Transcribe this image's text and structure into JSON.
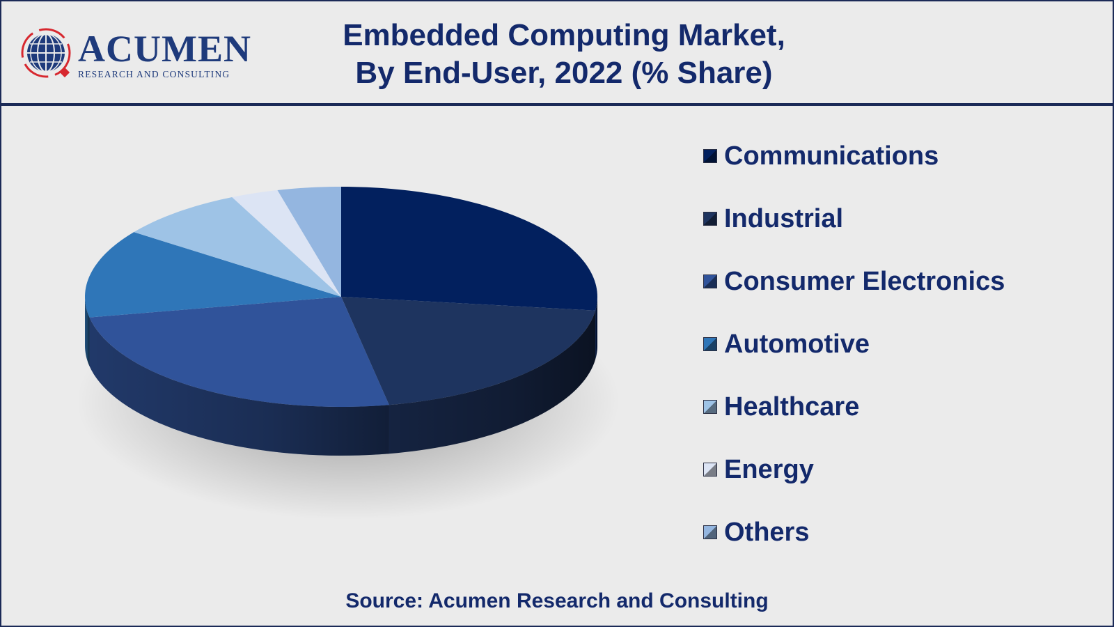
{
  "header": {
    "logo_word": "ACUMEN",
    "logo_sub": "RESEARCH AND CONSULTING",
    "title_line1": "Embedded Computing Market,",
    "title_line2": "By End-User, 2022 (% Share)"
  },
  "colors": {
    "background": "#ebebeb",
    "frame": "#1b2a57",
    "text": "#13296b",
    "logo_red": "#d7282f"
  },
  "chart_data": {
    "type": "pie",
    "style": "3d",
    "title": "Embedded Computing Market, By End-User, 2022 (% Share)",
    "legend_position": "right",
    "categories": [
      "Communications",
      "Industrial",
      "Consumer Electronics",
      "Automotive",
      "Healthcare",
      "Energy",
      "Others"
    ],
    "values": [
      27,
      20,
      25,
      13,
      8,
      3,
      4
    ],
    "colors": [
      "#02205e",
      "#1e345f",
      "#30539a",
      "#2f76b8",
      "#9ec3e6",
      "#dce4f4",
      "#94b6e0"
    ]
  },
  "footer": {
    "source": "Source: Acumen Research and Consulting"
  }
}
